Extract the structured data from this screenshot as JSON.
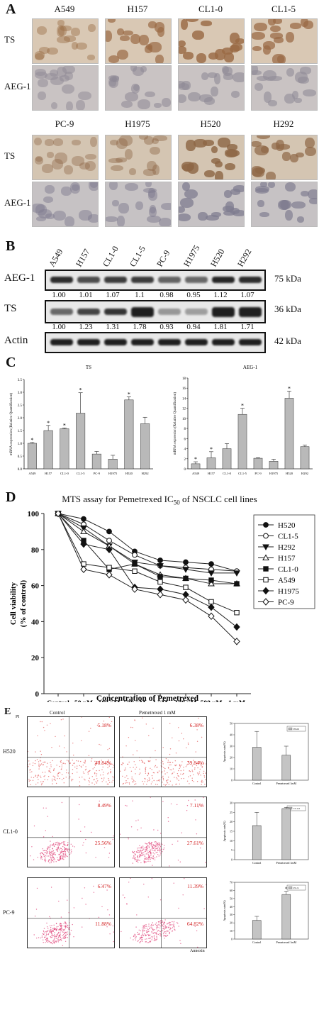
{
  "panelA": {
    "letter": "A",
    "top_cells": [
      "A549",
      "H157",
      "CL1-0",
      "CL1-5"
    ],
    "bottom_cells": [
      "PC-9",
      "H1975",
      "H520",
      "H292"
    ],
    "row_labels": [
      "TS",
      "AEG-1"
    ]
  },
  "panelB": {
    "letter": "B",
    "lanes": [
      "A549",
      "H157",
      "CL1-0",
      "CL1-5",
      "PC-9",
      "H1975",
      "H520",
      "H292"
    ],
    "blots": [
      {
        "label": "AEG-1",
        "kda": "75 kDa",
        "ratios": [
          "1.00",
          "1.01",
          "1.07",
          "1.1",
          "0.98",
          "0.95",
          "1.12",
          "1.07"
        ]
      },
      {
        "label": "TS",
        "kda": "36 kDa",
        "ratios": [
          "1.00",
          "1.23",
          "1.31",
          "1.78",
          "0.93",
          "0.94",
          "1.81",
          "1.71"
        ]
      },
      {
        "label": "Actin",
        "kda": "42 kDa",
        "ratios": []
      }
    ]
  },
  "panelC": {
    "letter": "C",
    "ylabel": "mRNA expression (Relative Quantification)",
    "categories": [
      "A549",
      "H157",
      "CL1-0",
      "CL1-5",
      "PC-9",
      "H1975",
      "H520",
      "H292"
    ]
  },
  "panelD": {
    "letter": "D",
    "title_main": "MTS assay for Pemetrexed IC",
    "title_sub": "50",
    "title_tail": " of NSCLC cell lines",
    "ylabel_1": "Cell viability",
    "ylabel_2": "(% of control)",
    "xlabel": "Concentration of Pemetrexed"
  },
  "panelE": {
    "letter": "E",
    "col_control": "Control",
    "col_treated": "Pemetrexed 1 mM",
    "y_axis_label": "PI",
    "x_axis_label": "Annexin",
    "rows": [
      {
        "cell": "H520",
        "control_q2": "5.18%",
        "control_q4": "40.84%",
        "treated_q2": "6.38%",
        "treated_q4": "39.84%",
        "legend": "H520"
      },
      {
        "cell": "CL1-0",
        "control_q2": "8.49%",
        "control_q4": "25.56%",
        "treated_q2": "7.11%",
        "treated_q4": "27.61%",
        "legend": "CL1-0"
      },
      {
        "cell": "PC-9",
        "control_q2": "6.47%",
        "control_q4": "11.88%",
        "treated_q2": "11.39%",
        "treated_q4": "64.82%",
        "legend": "PC-9"
      }
    ],
    "bar_xlabels": [
      "Control",
      "Pemetrexed 1mM"
    ],
    "bar_ylabel": "Apoptosis rate(%)"
  },
  "chart_data": [
    {
      "type": "bar",
      "title": "TS",
      "ylabel": "mRNA expression (Relative Quantification)",
      "categories": [
        "A549",
        "H157",
        "CL1-0",
        "CL1-5",
        "PC-9",
        "H1975",
        "H520",
        "H292"
      ],
      "values": [
        1.0,
        1.5,
        1.57,
        2.18,
        0.58,
        0.38,
        2.7,
        1.77
      ],
      "errors": [
        0.03,
        0.2,
        0.03,
        0.8,
        0.1,
        0.15,
        0.12,
        0.25
      ],
      "significant": [
        true,
        true,
        true,
        true,
        false,
        false,
        true,
        false
      ],
      "ylim": [
        0,
        3.5
      ],
      "yticks": [
        "0.0",
        "0.5",
        "1.0",
        "1.5",
        "2.0",
        "2.5",
        "3.0",
        "3.5"
      ]
    },
    {
      "type": "bar",
      "title": "AEG-1",
      "ylabel": "mRNA expression (Relative Quantification)",
      "categories": [
        "A549",
        "H157",
        "CL1-0",
        "CL1-5",
        "PC-9",
        "H1975",
        "H520",
        "H292"
      ],
      "values": [
        1.0,
        2.2,
        4.0,
        10.8,
        2.1,
        1.5,
        14.0,
        4.4
      ],
      "errors": [
        0.4,
        1.2,
        1.0,
        1.2,
        0.1,
        0.4,
        1.4,
        0.3
      ],
      "significant": [
        true,
        true,
        false,
        true,
        false,
        false,
        true,
        false
      ],
      "ylim": [
        0,
        18
      ],
      "yticks": [
        "0",
        "2",
        "4",
        "6",
        "8",
        "10",
        "12",
        "14",
        "16",
        "18"
      ]
    },
    {
      "type": "line",
      "categories": [
        "Control",
        "50 nM",
        "100 nM",
        "500 nM",
        "1 uM",
        "100 uM",
        "500 uM",
        "1 mM"
      ],
      "ylim": [
        0,
        100
      ],
      "yticks": [
        "0",
        "20",
        "40",
        "60",
        "80",
        "100"
      ],
      "series": [
        {
          "name": "H520",
          "marker": "circle-filled",
          "values": [
            100,
            97,
            90,
            79,
            74,
            73,
            72,
            68
          ]
        },
        {
          "name": "CL1-5",
          "marker": "circle-open",
          "values": [
            100,
            94,
            85,
            77,
            71,
            70,
            69,
            68
          ]
        },
        {
          "name": "H292",
          "marker": "triangle-down-filled",
          "values": [
            100,
            92,
            82,
            73,
            71,
            69,
            67,
            67
          ]
        },
        {
          "name": "H157",
          "marker": "triangle-up-open",
          "values": [
            100,
            90,
            82,
            72,
            66,
            64,
            61,
            61
          ]
        },
        {
          "name": "CL1-0",
          "marker": "square-filled",
          "values": [
            100,
            85,
            69,
            72,
            65,
            64,
            63,
            61
          ]
        },
        {
          "name": "A549",
          "marker": "square-open",
          "values": [
            100,
            72,
            70,
            68,
            62,
            59,
            51,
            45
          ]
        },
        {
          "name": "H1975",
          "marker": "diamond-filled",
          "values": [
            100,
            83,
            80,
            59,
            58,
            55,
            48,
            37
          ]
        },
        {
          "name": "PC-9",
          "marker": "diamond-open",
          "values": [
            100,
            69,
            66,
            58,
            55,
            52,
            43,
            29
          ]
        }
      ]
    },
    {
      "type": "bar",
      "legend": "H520",
      "categories": [
        "Control",
        "Pemetrexed 1mM"
      ],
      "values": [
        29,
        22
      ],
      "errors": [
        14,
        8
      ],
      "ylim": [
        0,
        50
      ],
      "yticks": [
        "0",
        "10",
        "20",
        "30",
        "40",
        "50"
      ]
    },
    {
      "type": "bar",
      "legend": "CL1-0",
      "categories": [
        "Control",
        "Pemetrexed 1mM"
      ],
      "values": [
        18,
        27
      ],
      "errors": [
        7,
        0.6
      ],
      "ylim": [
        0,
        30
      ],
      "yticks": [
        "0",
        "5",
        "10",
        "15",
        "20",
        "25",
        "30"
      ]
    },
    {
      "type": "bar",
      "legend": "PC-9",
      "categories": [
        "Control",
        "Pemetrexed 1mM"
      ],
      "values": [
        23,
        55
      ],
      "errors": [
        5,
        4
      ],
      "significant": [
        false,
        true
      ],
      "ylim": [
        0,
        70
      ],
      "yticks": [
        "0",
        "10",
        "20",
        "30",
        "40",
        "50",
        "60",
        "70"
      ]
    }
  ]
}
